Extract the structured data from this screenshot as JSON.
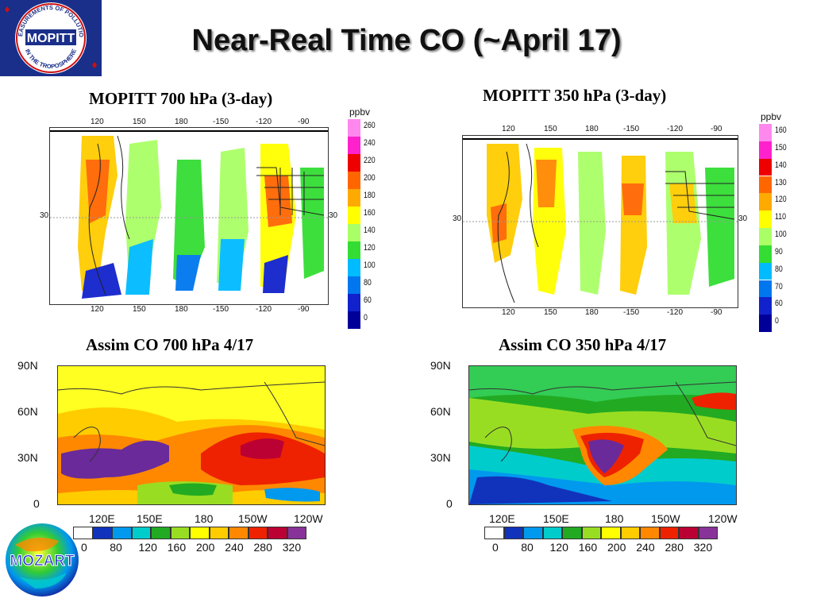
{
  "title": "Near-Real Time CO (~April 17)",
  "logo_mopitt": {
    "name": "MOPITT",
    "ring_text": "Measurements Of Pollution In The Troposphere"
  },
  "logo_mozart": {
    "name": "MOZART"
  },
  "panels": {
    "mopitt700": {
      "caption": "MOPITT 700 hPa (3-day)",
      "unit": "ppbv",
      "colorbar": [
        "260",
        "240",
        "220",
        "200",
        "180",
        "160",
        "140",
        "120",
        "100",
        "80",
        "60",
        "0"
      ],
      "lon_ticks": [
        "120",
        "150",
        "180",
        "-150",
        "-120",
        "-90"
      ],
      "lat_tick": "30"
    },
    "mopitt350": {
      "caption": "MOPITT 350 hPa (3-day)",
      "unit": "ppbv",
      "colorbar": [
        "160",
        "150",
        "140",
        "130",
        "120",
        "110",
        "100",
        "90",
        "80",
        "70",
        "60",
        "0"
      ],
      "lon_ticks": [
        "120",
        "150",
        "180",
        "-150",
        "-120",
        "-90"
      ],
      "lat_tick": "30"
    },
    "assim700": {
      "caption": "Assim CO 700 hPa 4/17",
      "lat_ticks": [
        "90N",
        "60N",
        "30N",
        "0"
      ],
      "lon_ticks": [
        "120E",
        "150E",
        "180",
        "150W",
        "120W"
      ],
      "colorbar": [
        "0",
        "80",
        "120",
        "160",
        "200",
        "240",
        "280",
        "320"
      ]
    },
    "assim350": {
      "caption": "Assim CO 350 hPa 4/17",
      "lat_ticks": [
        "90N",
        "60N",
        "30N",
        "0"
      ],
      "lon_ticks": [
        "120E",
        "150E",
        "180",
        "150W",
        "120W"
      ],
      "colorbar": [
        "0",
        "80",
        "120",
        "160",
        "200",
        "240",
        "280",
        "320"
      ]
    }
  },
  "colors": {
    "vertical_bar": [
      "#ff88ee",
      "#ff22cc",
      "#ee0000",
      "#ff6600",
      "#ffaa00",
      "#ffff00",
      "#aaff66",
      "#33dd33",
      "#00bbff",
      "#0077ee",
      "#1122cc",
      "#000099"
    ],
    "horizontal_bar": [
      "#ffffff",
      "#1133bb",
      "#0099ee",
      "#00cccc",
      "#22aa22",
      "#99dd22",
      "#ffff00",
      "#ffcc00",
      "#ff8800",
      "#ee2200",
      "#bb0033",
      "#883399"
    ]
  }
}
